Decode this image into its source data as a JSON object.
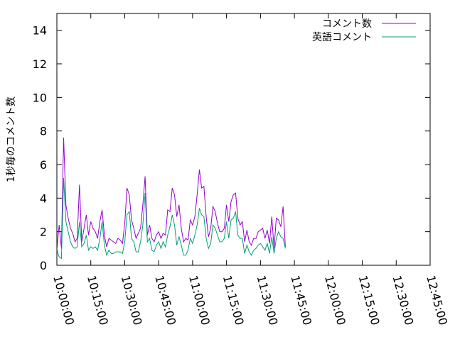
{
  "chart_data": {
    "type": "line",
    "title": "",
    "xlabel": "",
    "ylabel": "1秒毎のコメント数",
    "x_type": "time",
    "xlim": [
      "10:00:00",
      "12:45:00"
    ],
    "ylim": [
      0,
      15
    ],
    "yticks": [
      0,
      2,
      4,
      6,
      8,
      10,
      12,
      14
    ],
    "xticks": [
      "10:00:00",
      "10:15:00",
      "10:30:00",
      "10:45:00",
      "11:00:00",
      "11:15:00",
      "11:30:00",
      "11:45:00",
      "12:00:00",
      "12:15:00",
      "12:30:00",
      "12:45:00"
    ],
    "grid": false,
    "legend_position": "top-right",
    "series": [
      {
        "name": "コメント数",
        "color": "#9400d3",
        "points": [
          [
            "10:00:00",
            1.0
          ],
          [
            "10:01:00",
            2.4
          ],
          [
            "10:02:00",
            1.0
          ],
          [
            "10:03:00",
            7.6
          ],
          [
            "10:04:00",
            3.6
          ],
          [
            "10:05:00",
            2.8
          ],
          [
            "10:06:00",
            2.2
          ],
          [
            "10:07:00",
            1.9
          ],
          [
            "10:08:00",
            1.4
          ],
          [
            "10:09:00",
            1.6
          ],
          [
            "10:10:00",
            4.8
          ],
          [
            "10:11:00",
            1.4
          ],
          [
            "10:12:00",
            2.2
          ],
          [
            "10:13:00",
            3.0
          ],
          [
            "10:14:00",
            1.8
          ],
          [
            "10:15:00",
            2.6
          ],
          [
            "10:16:00",
            2.2
          ],
          [
            "10:17:00",
            2.0
          ],
          [
            "10:18:00",
            1.6
          ],
          [
            "10:19:00",
            2.6
          ],
          [
            "10:20:00",
            3.3
          ],
          [
            "10:21:00",
            1.8
          ],
          [
            "10:22:00",
            1.1
          ],
          [
            "10:23:00",
            1.6
          ],
          [
            "10:24:00",
            1.5
          ],
          [
            "10:25:00",
            1.4
          ],
          [
            "10:26:00",
            1.3
          ],
          [
            "10:27:00",
            1.6
          ],
          [
            "10:28:00",
            1.5
          ],
          [
            "10:29:00",
            1.3
          ],
          [
            "10:30:00",
            2.5
          ],
          [
            "10:31:00",
            4.6
          ],
          [
            "10:32:00",
            4.2
          ],
          [
            "10:33:00",
            2.7
          ],
          [
            "10:34:00",
            2.2
          ],
          [
            "10:35:00",
            1.6
          ],
          [
            "10:36:00",
            1.9
          ],
          [
            "10:37:00",
            2.2
          ],
          [
            "10:38:00",
            3.6
          ],
          [
            "10:39:00",
            5.3
          ],
          [
            "10:40:00",
            1.8
          ],
          [
            "10:41:00",
            2.4
          ],
          [
            "10:42:00",
            1.6
          ],
          [
            "10:43:00",
            1.4
          ],
          [
            "10:44:00",
            1.8
          ],
          [
            "10:45:00",
            2.0
          ],
          [
            "10:46:00",
            1.6
          ],
          [
            "10:47:00",
            1.9
          ],
          [
            "10:48:00",
            1.8
          ],
          [
            "10:49:00",
            3.3
          ],
          [
            "10:50:00",
            3.2
          ],
          [
            "10:51:00",
            4.6
          ],
          [
            "10:52:00",
            4.2
          ],
          [
            "10:53:00",
            2.9
          ],
          [
            "10:54:00",
            3.6
          ],
          [
            "10:55:00",
            2.2
          ],
          [
            "10:56:00",
            1.4
          ],
          [
            "10:57:00",
            1.6
          ],
          [
            "10:58:00",
            1.5
          ],
          [
            "10:59:00",
            2.7
          ],
          [
            "11:00:00",
            2.4
          ],
          [
            "11:01:00",
            2.9
          ],
          [
            "11:02:00",
            4.2
          ],
          [
            "11:03:00",
            5.7
          ],
          [
            "11:04:00",
            4.6
          ],
          [
            "11:05:00",
            4.7
          ],
          [
            "11:06:00",
            2.9
          ],
          [
            "11:07:00",
            1.7
          ],
          [
            "11:08:00",
            2.2
          ],
          [
            "11:09:00",
            3.5
          ],
          [
            "11:10:00",
            3.2
          ],
          [
            "11:11:00",
            2.5
          ],
          [
            "11:12:00",
            2.0
          ],
          [
            "11:13:00",
            2.0
          ],
          [
            "11:14:00",
            2.2
          ],
          [
            "11:15:00",
            3.6
          ],
          [
            "11:16:00",
            2.6
          ],
          [
            "11:17:00",
            3.8
          ],
          [
            "11:18:00",
            4.2
          ],
          [
            "11:19:00",
            4.3
          ],
          [
            "11:20:00",
            2.8
          ],
          [
            "11:21:00",
            2.4
          ],
          [
            "11:22:00",
            2.6
          ],
          [
            "11:23:00",
            1.4
          ],
          [
            "11:24:00",
            2.1
          ],
          [
            "11:25:00",
            1.4
          ],
          [
            "11:26:00",
            1.2
          ],
          [
            "11:27:00",
            1.6
          ],
          [
            "11:28:00",
            1.6
          ],
          [
            "11:29:00",
            2.0
          ],
          [
            "11:30:00",
            2.1
          ],
          [
            "11:31:00",
            2.2
          ],
          [
            "11:32:00",
            1.6
          ],
          [
            "11:33:00",
            2.1
          ],
          [
            "11:34:00",
            1.3
          ],
          [
            "11:35:00",
            2.9
          ],
          [
            "11:36:00",
            1.0
          ],
          [
            "11:37:00",
            2.8
          ],
          [
            "11:38:00",
            2.7
          ],
          [
            "11:39:00",
            2.3
          ],
          [
            "11:40:00",
            3.5
          ],
          [
            "11:41:00",
            1.1
          ]
        ]
      },
      {
        "name": "英語コメント",
        "color": "#009e73",
        "points": [
          [
            "10:00:00",
            0.9
          ],
          [
            "10:01:00",
            0.5
          ],
          [
            "10:02:00",
            0.4
          ],
          [
            "10:03:00",
            5.2
          ],
          [
            "10:04:00",
            2.6
          ],
          [
            "10:05:00",
            2.0
          ],
          [
            "10:06:00",
            1.4
          ],
          [
            "10:07:00",
            1.1
          ],
          [
            "10:08:00",
            1.0
          ],
          [
            "10:09:00",
            1.1
          ],
          [
            "10:10:00",
            2.6
          ],
          [
            "10:11:00",
            1.1
          ],
          [
            "10:12:00",
            1.3
          ],
          [
            "10:13:00",
            1.8
          ],
          [
            "10:14:00",
            0.9
          ],
          [
            "10:15:00",
            1.1
          ],
          [
            "10:16:00",
            1.0
          ],
          [
            "10:17:00",
            1.1
          ],
          [
            "10:18:00",
            0.9
          ],
          [
            "10:19:00",
            1.6
          ],
          [
            "10:20:00",
            2.6
          ],
          [
            "10:21:00",
            1.2
          ],
          [
            "10:22:00",
            0.6
          ],
          [
            "10:23:00",
            0.9
          ],
          [
            "10:24:00",
            0.7
          ],
          [
            "10:25:00",
            0.7
          ],
          [
            "10:26:00",
            0.8
          ],
          [
            "10:27:00",
            0.8
          ],
          [
            "10:28:00",
            0.8
          ],
          [
            "10:29:00",
            0.7
          ],
          [
            "10:30:00",
            1.4
          ],
          [
            "10:31:00",
            3.0
          ],
          [
            "10:32:00",
            3.2
          ],
          [
            "10:33:00",
            1.6
          ],
          [
            "10:34:00",
            1.4
          ],
          [
            "10:35:00",
            0.8
          ],
          [
            "10:36:00",
            0.8
          ],
          [
            "10:37:00",
            1.4
          ],
          [
            "10:38:00",
            2.4
          ],
          [
            "10:39:00",
            4.3
          ],
          [
            "10:40:00",
            1.4
          ],
          [
            "10:41:00",
            1.6
          ],
          [
            "10:42:00",
            0.9
          ],
          [
            "10:43:00",
            0.8
          ],
          [
            "10:44:00",
            1.2
          ],
          [
            "10:45:00",
            1.4
          ],
          [
            "10:46:00",
            1.0
          ],
          [
            "10:47:00",
            1.4
          ],
          [
            "10:48:00",
            1.1
          ],
          [
            "10:49:00",
            1.8
          ],
          [
            "10:50:00",
            2.3
          ],
          [
            "10:51:00",
            3.0
          ],
          [
            "10:52:00",
            2.4
          ],
          [
            "10:53:00",
            1.2
          ],
          [
            "10:54:00",
            1.7
          ],
          [
            "10:55:00",
            1.2
          ],
          [
            "10:56:00",
            0.6
          ],
          [
            "10:57:00",
            0.6
          ],
          [
            "10:58:00",
            0.9
          ],
          [
            "10:59:00",
            1.6
          ],
          [
            "11:00:00",
            1.3
          ],
          [
            "11:01:00",
            1.8
          ],
          [
            "11:02:00",
            2.4
          ],
          [
            "11:03:00",
            3.4
          ],
          [
            "11:04:00",
            3.0
          ],
          [
            "11:05:00",
            2.9
          ],
          [
            "11:06:00",
            1.6
          ],
          [
            "11:07:00",
            1.0
          ],
          [
            "11:08:00",
            1.3
          ],
          [
            "11:09:00",
            2.4
          ],
          [
            "11:10:00",
            2.2
          ],
          [
            "11:11:00",
            1.8
          ],
          [
            "11:12:00",
            1.4
          ],
          [
            "11:13:00",
            1.4
          ],
          [
            "11:14:00",
            1.6
          ],
          [
            "11:15:00",
            2.6
          ],
          [
            "11:16:00",
            1.6
          ],
          [
            "11:17:00",
            2.7
          ],
          [
            "11:18:00",
            2.8
          ],
          [
            "11:19:00",
            3.2
          ],
          [
            "11:20:00",
            1.8
          ],
          [
            "11:21:00",
            1.6
          ],
          [
            "11:22:00",
            1.6
          ],
          [
            "11:23:00",
            0.7
          ],
          [
            "11:24:00",
            1.2
          ],
          [
            "11:25:00",
            0.8
          ],
          [
            "11:26:00",
            0.6
          ],
          [
            "11:27:00",
            0.9
          ],
          [
            "11:28:00",
            1.0
          ],
          [
            "11:29:00",
            1.2
          ],
          [
            "11:30:00",
            1.3
          ],
          [
            "11:31:00",
            1.1
          ],
          [
            "11:32:00",
            0.9
          ],
          [
            "11:33:00",
            1.3
          ],
          [
            "11:34:00",
            0.7
          ],
          [
            "11:35:00",
            1.7
          ],
          [
            "11:36:00",
            0.7
          ],
          [
            "11:37:00",
            1.6
          ],
          [
            "11:38:00",
            2.0
          ],
          [
            "11:39:00",
            1.7
          ],
          [
            "11:40:00",
            1.6
          ],
          [
            "11:41:00",
            1.0
          ]
        ]
      }
    ]
  }
}
